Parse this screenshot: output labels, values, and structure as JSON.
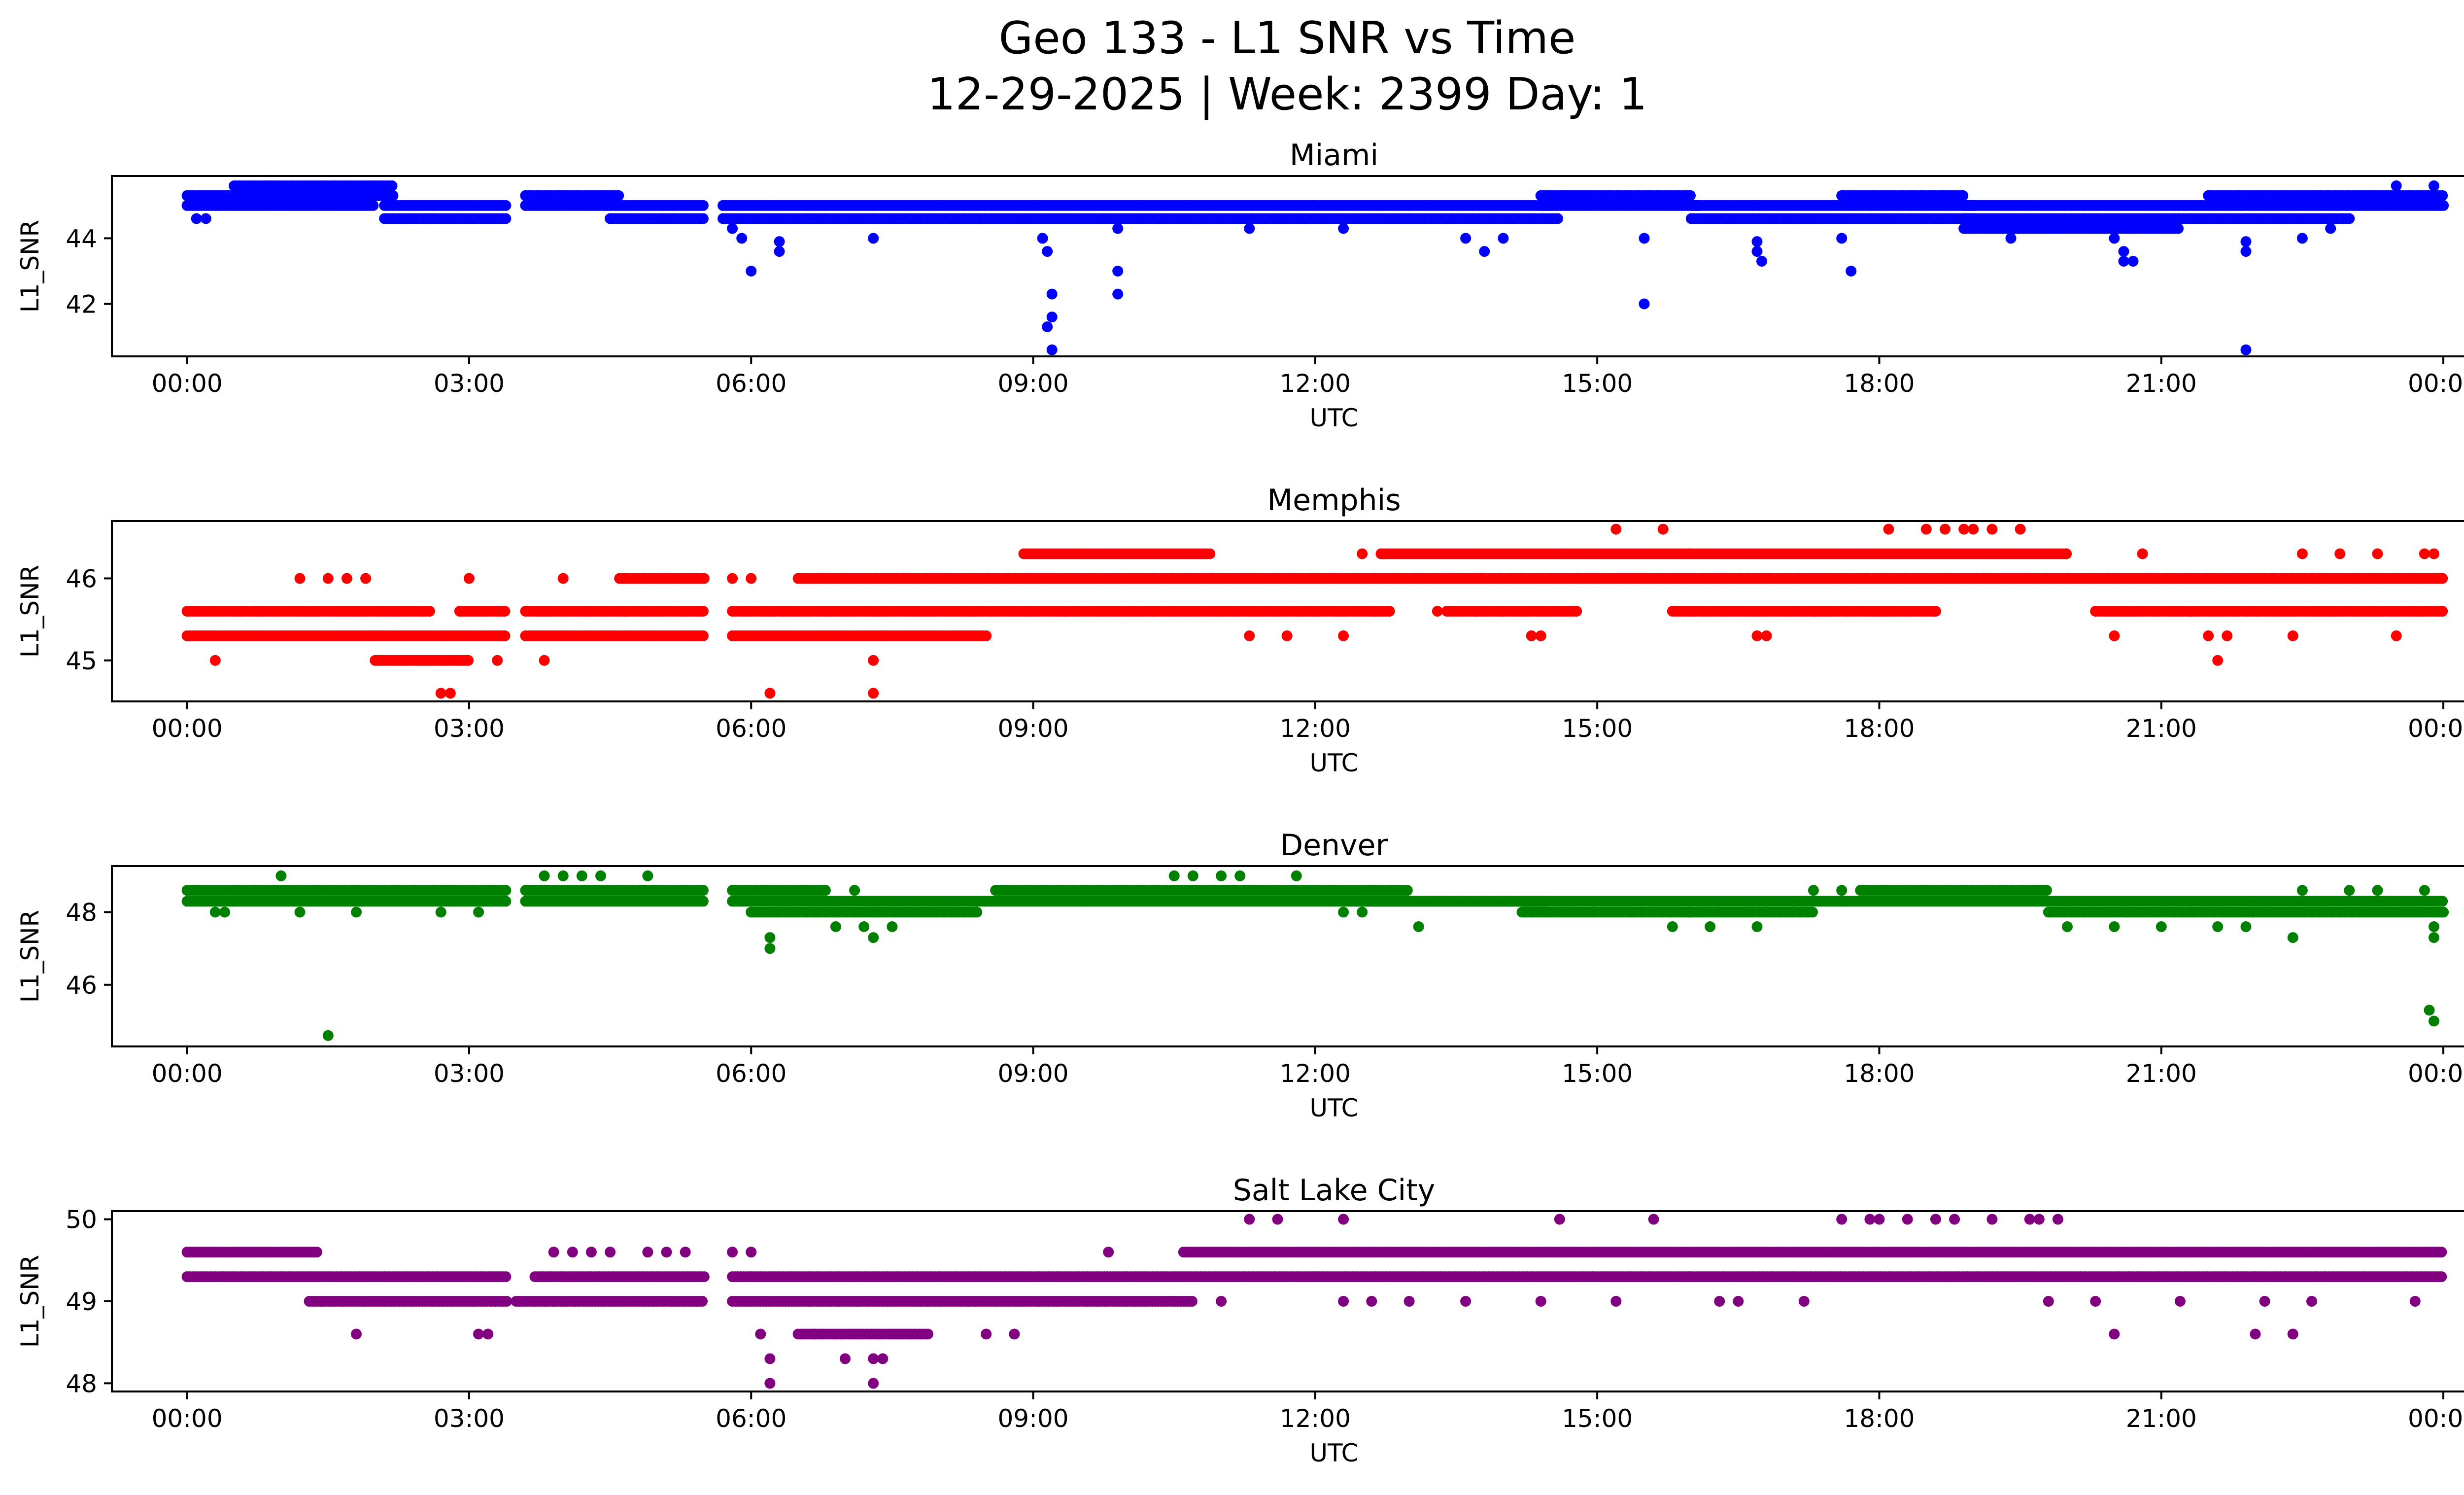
{
  "chart_data": {
    "type": "scatter",
    "title": "Geo 133 - L1 SNR vs Time",
    "subtitle": "12-29-2025 | Week: 2399 Day: 1",
    "xlabel": "UTC",
    "ylabel": "L1_SNR",
    "x_units": "hours UTC",
    "xlim": [
      -0.8,
      25.2
    ],
    "xticks": [
      0,
      3,
      6,
      9,
      12,
      15,
      18,
      21,
      24
    ],
    "xtick_labels": [
      "00:00",
      "03:00",
      "06:00",
      "09:00",
      "12:00",
      "15:00",
      "18:00",
      "21:00",
      "00:00"
    ],
    "grid": false,
    "panels": [
      {
        "name": "Miami",
        "color": "#0000ff",
        "ylim": [
          40.4,
          45.9
        ],
        "yticks": [
          42,
          44
        ],
        "ytick_labels": [
          "42",
          "44"
        ],
        "bands": [
          {
            "y": 45.3,
            "x0": 0.0,
            "x1": 2.2
          },
          {
            "y": 45.0,
            "x0": 0.0,
            "x1": 2.0
          },
          {
            "y": 45.6,
            "x0": 0.5,
            "x1": 2.2
          },
          {
            "y": 44.6,
            "x0": 2.1,
            "x1": 3.4
          },
          {
            "y": 45.0,
            "x0": 2.1,
            "x1": 3.4
          },
          {
            "y": 45.0,
            "x0": 3.6,
            "x1": 5.5
          },
          {
            "y": 45.3,
            "x0": 3.6,
            "x1": 4.6
          },
          {
            "y": 44.6,
            "x0": 4.5,
            "x1": 5.5
          },
          {
            "y": 44.6,
            "x0": 5.7,
            "x1": 14.6
          },
          {
            "y": 45.0,
            "x0": 5.7,
            "x1": 14.6
          },
          {
            "y": 45.0,
            "x0": 14.4,
            "x1": 16.1
          },
          {
            "y": 45.3,
            "x0": 14.4,
            "x1": 16.0
          },
          {
            "y": 44.6,
            "x0": 16.0,
            "x1": 19.0
          },
          {
            "y": 45.0,
            "x0": 16.0,
            "x1": 19.0
          },
          {
            "y": 45.3,
            "x0": 17.6,
            "x1": 18.9
          },
          {
            "y": 44.3,
            "x0": 18.9,
            "x1": 21.2
          },
          {
            "y": 44.6,
            "x0": 18.9,
            "x1": 21.2
          },
          {
            "y": 45.0,
            "x0": 18.9,
            "x1": 24.0
          },
          {
            "y": 45.3,
            "x0": 21.5,
            "x1": 24.0
          },
          {
            "y": 44.6,
            "x0": 21.2,
            "x1": 23.0
          }
        ],
        "points": [
          [
            0.1,
            44.6
          ],
          [
            0.2,
            44.6
          ],
          [
            2.6,
            44.6
          ],
          [
            5.8,
            44.3
          ],
          [
            5.9,
            44.0
          ],
          [
            6.0,
            43.0
          ],
          [
            6.3,
            43.9
          ],
          [
            6.3,
            43.6
          ],
          [
            7.3,
            44.0
          ],
          [
            9.1,
            44.0
          ],
          [
            9.15,
            43.6
          ],
          [
            9.2,
            42.3
          ],
          [
            9.2,
            41.6
          ],
          [
            9.15,
            41.3
          ],
          [
            9.2,
            40.6
          ],
          [
            9.9,
            43.0
          ],
          [
            9.9,
            42.3
          ],
          [
            9.9,
            44.3
          ],
          [
            11.3,
            44.3
          ],
          [
            12.3,
            44.3
          ],
          [
            13.6,
            44.0
          ],
          [
            13.8,
            43.6
          ],
          [
            14.0,
            44.0
          ],
          [
            15.5,
            42.0
          ],
          [
            15.5,
            44.0
          ],
          [
            16.7,
            43.9
          ],
          [
            16.7,
            43.6
          ],
          [
            16.75,
            43.3
          ],
          [
            17.7,
            43.0
          ],
          [
            17.6,
            44.0
          ],
          [
            19.4,
            44.0
          ],
          [
            20.5,
            44.0
          ],
          [
            20.6,
            43.6
          ],
          [
            20.6,
            43.3
          ],
          [
            20.7,
            43.3
          ],
          [
            21.9,
            40.6
          ],
          [
            21.9,
            43.9
          ],
          [
            21.9,
            43.6
          ],
          [
            22.5,
            44.0
          ],
          [
            22.8,
            44.3
          ],
          [
            23.5,
            45.6
          ],
          [
            23.9,
            45.6
          ]
        ]
      },
      {
        "name": "Memphis",
        "color": "#ff0000",
        "ylim": [
          44.5,
          46.7
        ],
        "yticks": [
          45,
          46
        ],
        "ytick_labels": [
          "45",
          "46"
        ],
        "bands": [
          {
            "y": 45.6,
            "x0": 0.0,
            "x1": 2.6
          },
          {
            "y": 45.3,
            "x0": 0.0,
            "x1": 2.0
          },
          {
            "y": 45.0,
            "x0": 2.0,
            "x1": 3.0
          },
          {
            "y": 45.3,
            "x0": 2.0,
            "x1": 3.4
          },
          {
            "y": 45.6,
            "x0": 2.9,
            "x1": 3.4
          },
          {
            "y": 45.3,
            "x0": 3.6,
            "x1": 5.5
          },
          {
            "y": 45.6,
            "x0": 3.6,
            "x1": 5.5
          },
          {
            "y": 46.0,
            "x0": 4.6,
            "x1": 5.5
          },
          {
            "y": 45.3,
            "x0": 5.8,
            "x1": 8.5
          },
          {
            "y": 45.6,
            "x0": 5.8,
            "x1": 12.8
          },
          {
            "y": 46.0,
            "x0": 6.5,
            "x1": 24.0
          },
          {
            "y": 46.3,
            "x0": 8.9,
            "x1": 10.9
          },
          {
            "y": 46.3,
            "x0": 12.7,
            "x1": 20.0
          },
          {
            "y": 45.6,
            "x0": 13.4,
            "x1": 14.8
          },
          {
            "y": 45.6,
            "x0": 15.8,
            "x1": 18.6
          },
          {
            "y": 45.6,
            "x0": 20.3,
            "x1": 24.0
          }
        ],
        "points": [
          [
            0.3,
            45.0
          ],
          [
            1.2,
            46.0
          ],
          [
            1.5,
            46.0
          ],
          [
            1.7,
            46.0
          ],
          [
            1.9,
            46.0
          ],
          [
            2.7,
            44.6
          ],
          [
            2.8,
            44.6
          ],
          [
            3.0,
            46.0
          ],
          [
            3.3,
            45.0
          ],
          [
            3.8,
            45.0
          ],
          [
            4.0,
            46.0
          ],
          [
            6.2,
            44.6
          ],
          [
            7.3,
            45.0
          ],
          [
            7.3,
            44.6
          ],
          [
            7.4,
            45.3
          ],
          [
            5.8,
            46.0
          ],
          [
            6.0,
            46.0
          ],
          [
            11.3,
            45.3
          ],
          [
            11.7,
            45.3
          ],
          [
            12.3,
            45.3
          ],
          [
            12.5,
            46.3
          ],
          [
            13.3,
            45.6
          ],
          [
            13.7,
            45.6
          ],
          [
            14.3,
            45.3
          ],
          [
            14.4,
            45.3
          ],
          [
            15.2,
            46.6
          ],
          [
            15.7,
            46.6
          ],
          [
            16.7,
            45.3
          ],
          [
            16.8,
            45.3
          ],
          [
            18.1,
            46.6
          ],
          [
            18.5,
            46.6
          ],
          [
            18.7,
            46.6
          ],
          [
            18.9,
            46.6
          ],
          [
            19.0,
            46.6
          ],
          [
            19.2,
            46.6
          ],
          [
            19.5,
            46.6
          ],
          [
            18.6,
            45.6
          ],
          [
            20.5,
            45.3
          ],
          [
            20.8,
            46.3
          ],
          [
            21.5,
            45.3
          ],
          [
            21.6,
            45.0
          ],
          [
            21.7,
            45.3
          ],
          [
            22.4,
            45.3
          ],
          [
            22.5,
            46.3
          ],
          [
            22.9,
            46.3
          ],
          [
            23.3,
            46.3
          ],
          [
            23.5,
            45.3
          ],
          [
            23.8,
            46.3
          ],
          [
            23.9,
            46.3
          ]
        ]
      },
      {
        "name": "Denver",
        "color": "#008000",
        "ylim": [
          44.3,
          49.27
        ],
        "yticks": [
          46,
          48
        ],
        "ytick_labels": [
          "46",
          "48"
        ],
        "bands": [
          {
            "y": 48.6,
            "x0": 0.0,
            "x1": 3.4
          },
          {
            "y": 48.3,
            "x0": 0.0,
            "x1": 3.4
          },
          {
            "y": 48.6,
            "x0": 3.6,
            "x1": 5.5
          },
          {
            "y": 48.3,
            "x0": 3.6,
            "x1": 5.5
          },
          {
            "y": 48.3,
            "x0": 5.8,
            "x1": 8.4
          },
          {
            "y": 48.0,
            "x0": 6.0,
            "x1": 8.4
          },
          {
            "y": 48.6,
            "x0": 5.8,
            "x1": 6.8
          },
          {
            "y": 48.3,
            "x0": 8.4,
            "x1": 14.4
          },
          {
            "y": 48.6,
            "x0": 8.6,
            "x1": 13.0
          },
          {
            "y": 48.3,
            "x0": 12.5,
            "x1": 14.5
          },
          {
            "y": 48.0,
            "x0": 14.2,
            "x1": 17.3
          },
          {
            "y": 48.3,
            "x0": 14.2,
            "x1": 17.6
          },
          {
            "y": 48.3,
            "x0": 17.6,
            "x1": 24.0
          },
          {
            "y": 48.6,
            "x0": 17.8,
            "x1": 19.8
          },
          {
            "y": 48.0,
            "x0": 19.8,
            "x1": 24.0
          }
        ],
        "points": [
          [
            1.0,
            49.0
          ],
          [
            0.3,
            48.0
          ],
          [
            0.4,
            48.0
          ],
          [
            1.2,
            48.0
          ],
          [
            1.5,
            44.6
          ],
          [
            1.8,
            48.0
          ],
          [
            2.7,
            48.0
          ],
          [
            3.1,
            48.0
          ],
          [
            3.8,
            49.0
          ],
          [
            4.0,
            49.0
          ],
          [
            4.2,
            49.0
          ],
          [
            4.4,
            49.0
          ],
          [
            4.9,
            49.0
          ],
          [
            6.2,
            47.3
          ],
          [
            6.2,
            47.0
          ],
          [
            6.9,
            47.6
          ],
          [
            7.2,
            47.6
          ],
          [
            7.3,
            47.3
          ],
          [
            7.5,
            47.6
          ],
          [
            7.1,
            48.6
          ],
          [
            10.5,
            49.0
          ],
          [
            10.7,
            49.0
          ],
          [
            11.0,
            49.0
          ],
          [
            11.2,
            49.0
          ],
          [
            11.4,
            48.6
          ],
          [
            11.8,
            49.0
          ],
          [
            12.3,
            48.0
          ],
          [
            12.5,
            48.0
          ],
          [
            13.1,
            47.6
          ],
          [
            15.8,
            47.6
          ],
          [
            16.2,
            47.6
          ],
          [
            16.7,
            47.6
          ],
          [
            17.3,
            48.6
          ],
          [
            17.6,
            48.6
          ],
          [
            20.0,
            47.6
          ],
          [
            20.5,
            47.6
          ],
          [
            21.0,
            47.6
          ],
          [
            21.6,
            47.6
          ],
          [
            21.9,
            47.6
          ],
          [
            22.4,
            47.3
          ],
          [
            22.5,
            48.6
          ],
          [
            23.0,
            48.6
          ],
          [
            23.3,
            48.6
          ],
          [
            23.8,
            48.6
          ],
          [
            23.9,
            47.6
          ],
          [
            23.9,
            47.3
          ],
          [
            23.85,
            45.3
          ],
          [
            23.9,
            45.0
          ]
        ]
      },
      {
        "name": "Salt Lake City",
        "color": "#800080",
        "ylim": [
          47.9,
          50.1
        ],
        "yticks": [
          48,
          49,
          50
        ],
        "ytick_labels": [
          "48",
          "49",
          "50"
        ],
        "bands": [
          {
            "y": 49.6,
            "x0": 0.0,
            "x1": 1.4
          },
          {
            "y": 49.3,
            "x0": 0.0,
            "x1": 3.4
          },
          {
            "y": 49.0,
            "x0": 1.3,
            "x1": 3.4
          },
          {
            "y": 49.3,
            "x0": 3.7,
            "x1": 5.5
          },
          {
            "y": 49.0,
            "x0": 3.5,
            "x1": 5.5
          },
          {
            "y": 49.3,
            "x0": 5.8,
            "x1": 24.0
          },
          {
            "y": 49.0,
            "x0": 5.8,
            "x1": 10.7
          },
          {
            "y": 48.6,
            "x0": 6.5,
            "x1": 7.9
          },
          {
            "y": 49.6,
            "x0": 10.6,
            "x1": 24.0
          }
        ],
        "points": [
          [
            1.8,
            48.6
          ],
          [
            3.1,
            48.6
          ],
          [
            3.2,
            48.6
          ],
          [
            3.9,
            49.6
          ],
          [
            4.1,
            49.6
          ],
          [
            4.3,
            49.6
          ],
          [
            4.5,
            49.6
          ],
          [
            4.9,
            49.6
          ],
          [
            5.1,
            49.6
          ],
          [
            5.3,
            49.6
          ],
          [
            5.8,
            49.6
          ],
          [
            6.0,
            49.6
          ],
          [
            6.1,
            48.6
          ],
          [
            6.2,
            48.3
          ],
          [
            6.2,
            48.0
          ],
          [
            7.0,
            48.3
          ],
          [
            7.3,
            48.0
          ],
          [
            7.3,
            48.3
          ],
          [
            7.4,
            48.3
          ],
          [
            8.5,
            48.6
          ],
          [
            8.8,
            48.6
          ],
          [
            9.8,
            49.6
          ],
          [
            11.0,
            49.0
          ],
          [
            11.3,
            50.0
          ],
          [
            11.6,
            50.0
          ],
          [
            12.3,
            50.0
          ],
          [
            12.3,
            49.0
          ],
          [
            12.6,
            49.0
          ],
          [
            13.0,
            49.0
          ],
          [
            13.6,
            49.0
          ],
          [
            14.4,
            49.0
          ],
          [
            14.6,
            50.0
          ],
          [
            15.2,
            49.0
          ],
          [
            15.6,
            50.0
          ],
          [
            16.3,
            49.0
          ],
          [
            16.5,
            49.0
          ],
          [
            17.2,
            49.0
          ],
          [
            17.6,
            50.0
          ],
          [
            17.9,
            50.0
          ],
          [
            18.0,
            50.0
          ],
          [
            18.3,
            50.0
          ],
          [
            18.6,
            50.0
          ],
          [
            18.8,
            50.0
          ],
          [
            19.2,
            50.0
          ],
          [
            19.6,
            50.0
          ],
          [
            19.7,
            50.0
          ],
          [
            19.9,
            50.0
          ],
          [
            19.8,
            49.0
          ],
          [
            20.3,
            49.0
          ],
          [
            20.5,
            48.6
          ],
          [
            21.2,
            49.0
          ],
          [
            22.0,
            48.6
          ],
          [
            22.1,
            49.0
          ],
          [
            22.4,
            48.6
          ],
          [
            22.6,
            49.0
          ],
          [
            23.7,
            49.0
          ]
        ]
      }
    ]
  }
}
